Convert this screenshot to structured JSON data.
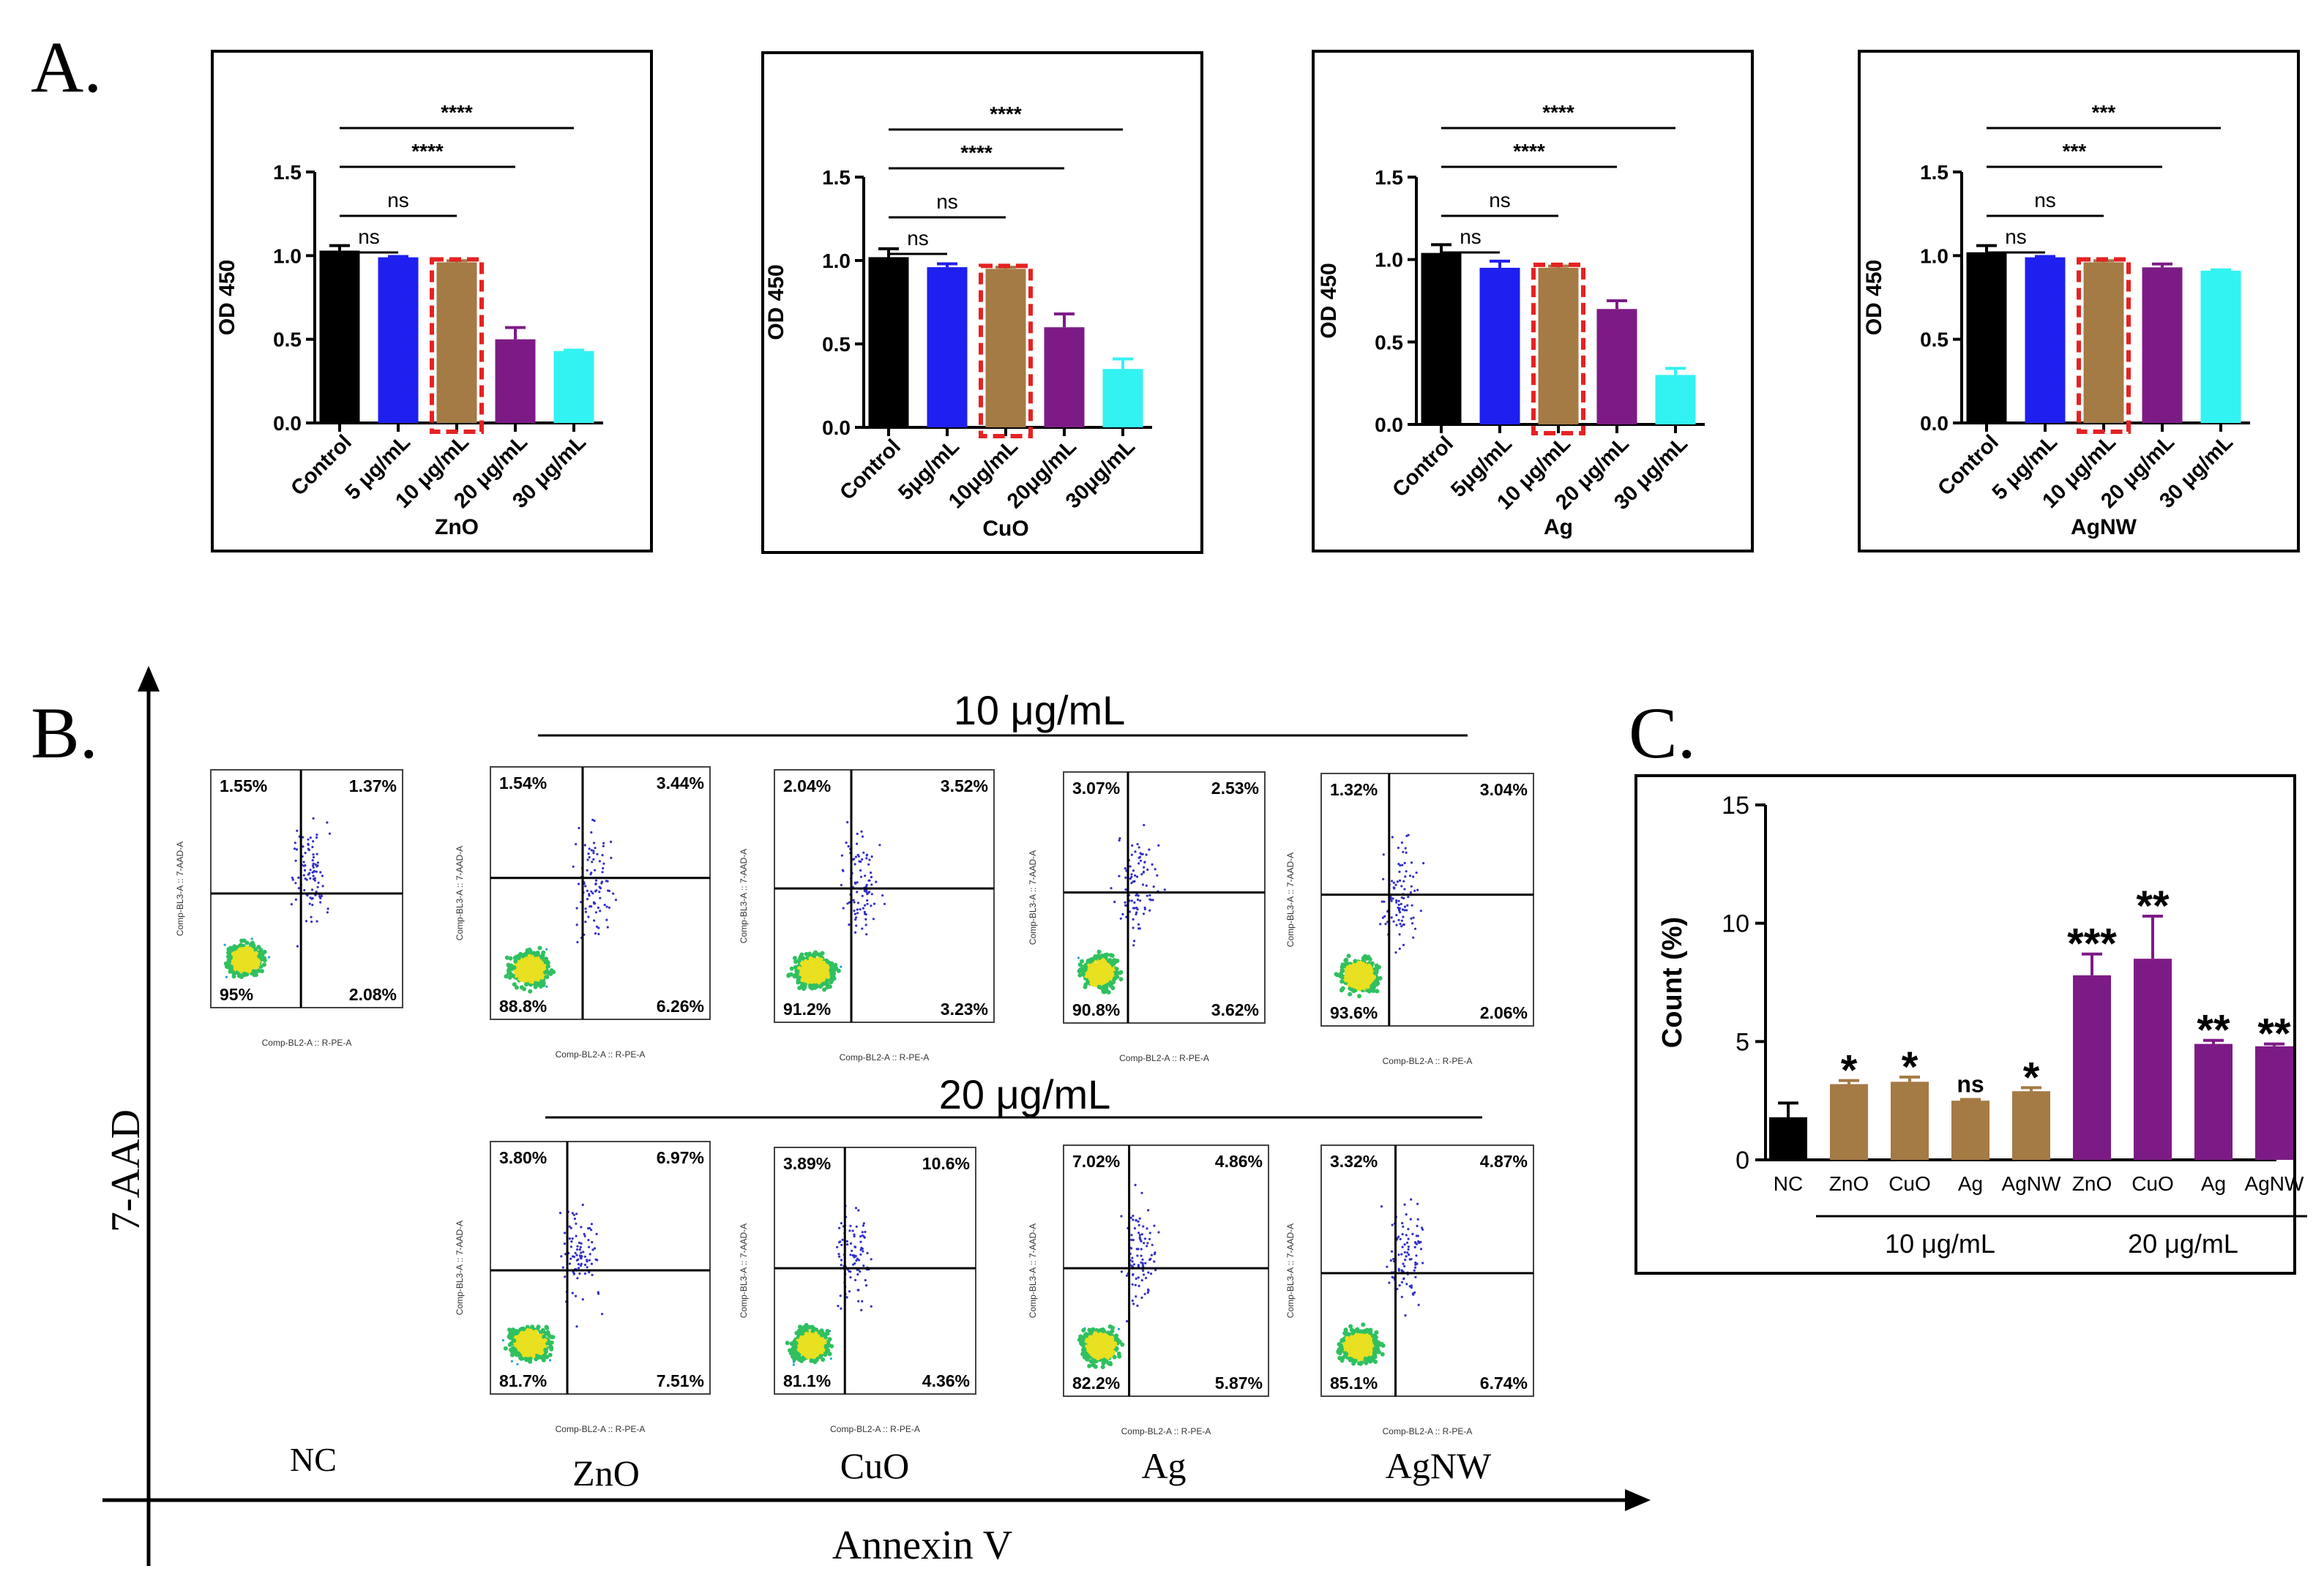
{
  "panel_labels": {
    "a": "A.",
    "b": "B.",
    "c": "C."
  },
  "chart_data": [
    {
      "type": "bar",
      "panel": "A",
      "title": "ZnO",
      "xlabel": "ZnO",
      "ylabel": "OD 450",
      "ylim": [
        0,
        1.5
      ],
      "yticks": [
        "0.0",
        "0.5",
        "1.0",
        "1.5"
      ],
      "categories": [
        "Control",
        "5 μg/mL",
        "10 μg/mL",
        "20 μg/mL",
        "30 μg/mL"
      ],
      "values": [
        1.03,
        0.99,
        0.96,
        0.5,
        0.43
      ],
      "errors": [
        0.03,
        0.005,
        0.01,
        0.07,
        0.005
      ],
      "colors": [
        "#000000",
        "#1f1ff0",
        "#a47a45",
        "#7d1b86",
        "#33f2f2"
      ],
      "highlight_index": 2,
      "significance": [
        {
          "label": "ns",
          "to": 1
        },
        {
          "label": "ns",
          "to": 2
        },
        {
          "label": "****",
          "to": 3
        },
        {
          "label": "****",
          "to": 4
        }
      ]
    },
    {
      "type": "bar",
      "panel": "A",
      "title": "CuO",
      "xlabel": "CuO",
      "ylabel": "OD 450",
      "ylim": [
        0,
        1.5
      ],
      "yticks": [
        "0.0",
        "0.5",
        "1.0",
        "1.5"
      ],
      "categories": [
        "Control",
        "5μg/mL",
        "10μg/mL",
        "20μg/mL",
        "30μg/mL"
      ],
      "values": [
        1.02,
        0.96,
        0.95,
        0.6,
        0.35
      ],
      "errors": [
        0.05,
        0.02,
        0.01,
        0.08,
        0.06
      ],
      "colors": [
        "#000000",
        "#1f1ff0",
        "#a47a45",
        "#7d1b86",
        "#33f2f2"
      ],
      "highlight_index": 2,
      "significance": [
        {
          "label": "ns",
          "to": 1
        },
        {
          "label": "ns",
          "to": 2
        },
        {
          "label": "****",
          "to": 3
        },
        {
          "label": "****",
          "to": 4
        }
      ]
    },
    {
      "type": "bar",
      "panel": "A",
      "title": "Ag",
      "xlabel": "Ag",
      "ylabel": "OD 450",
      "ylim": [
        0,
        1.5
      ],
      "yticks": [
        "0.0",
        "0.5",
        "1.0",
        "1.5"
      ],
      "categories": [
        "Control",
        "5μg/mL",
        "10 μg/mL",
        "20 μg/mL",
        "30 μg/mL"
      ],
      "values": [
        1.04,
        0.95,
        0.95,
        0.7,
        0.3
      ],
      "errors": [
        0.05,
        0.04,
        0.01,
        0.05,
        0.04
      ],
      "colors": [
        "#000000",
        "#1f1ff0",
        "#a47a45",
        "#7d1b86",
        "#33f2f2"
      ],
      "highlight_index": 2,
      "significance": [
        {
          "label": "ns",
          "to": 1
        },
        {
          "label": "ns",
          "to": 2
        },
        {
          "label": "****",
          "to": 3
        },
        {
          "label": "****",
          "to": 4
        }
      ]
    },
    {
      "type": "bar",
      "panel": "A",
      "title": "AgNW",
      "xlabel": "AgNW",
      "ylabel": "OD 450",
      "ylim": [
        0,
        1.5
      ],
      "yticks": [
        "0.0",
        "0.5",
        "1.0",
        "1.5"
      ],
      "categories": [
        "Control",
        "5 μg/mL",
        "10 μg/mL",
        "20 μg/mL",
        "30 μg/mL"
      ],
      "values": [
        1.02,
        0.99,
        0.96,
        0.93,
        0.91
      ],
      "errors": [
        0.04,
        0.005,
        0.01,
        0.02,
        0.005
      ],
      "colors": [
        "#000000",
        "#1f1ff0",
        "#a47a45",
        "#7d1b86",
        "#33f2f2"
      ],
      "highlight_index": 2,
      "significance": [
        {
          "label": "ns",
          "to": 1
        },
        {
          "label": "ns",
          "to": 2
        },
        {
          "label": "***",
          "to": 3
        },
        {
          "label": "***",
          "to": 4
        }
      ]
    },
    {
      "type": "bar",
      "panel": "C",
      "ylabel": "Count (%)",
      "ylim": [
        0,
        15
      ],
      "yticks": [
        "0",
        "5",
        "10",
        "15"
      ],
      "categories": [
        "NC",
        "ZnO",
        "CuO",
        "Ag",
        "AgNW",
        "ZnO",
        "CuO",
        "Ag",
        "AgNW"
      ],
      "values": [
        1.8,
        3.2,
        3.3,
        2.5,
        2.9,
        7.8,
        8.5,
        4.9,
        4.8
      ],
      "errors": [
        0.6,
        0.15,
        0.2,
        0.05,
        0.15,
        0.9,
        1.8,
        0.15,
        0.1
      ],
      "colors": [
        "#000000",
        "#a47a45",
        "#a47a45",
        "#a47a45",
        "#a47a45",
        "#7d1b86",
        "#7d1b86",
        "#7d1b86",
        "#7d1b86"
      ],
      "annotations": [
        "",
        "*",
        "*",
        "ns",
        "*",
        "***",
        "**",
        "**",
        "**"
      ],
      "groups": [
        {
          "label": "10 μg/mL",
          "from": 1,
          "to": 4
        },
        {
          "label": "20 μg/mL",
          "from": 5,
          "to": 8
        }
      ]
    }
  ],
  "flow": {
    "y_axis_label": "7-AAD",
    "x_axis_label": "Annexin V",
    "row_labels": [
      "10 μg/mL",
      "20 μg/mL"
    ],
    "column_labels": [
      "NC",
      "ZnO",
      "CuO",
      "Ag",
      "AgNW"
    ],
    "axis_y_small": "Comp-BL3-A :: 7-AAD-A",
    "axis_x_small": "Comp-BL2-A :: R-PE-A",
    "plots": [
      {
        "id": "nc",
        "quadrants": [
          "1.55%",
          "1.37%",
          "95%",
          "2.08%"
        ]
      },
      {
        "id": "zno-10",
        "quadrants": [
          "1.54%",
          "3.44%",
          "88.8%",
          "6.26%"
        ]
      },
      {
        "id": "cuo-10",
        "quadrants": [
          "2.04%",
          "3.52%",
          "91.2%",
          "3.23%"
        ]
      },
      {
        "id": "ag-10",
        "quadrants": [
          "3.07%",
          "2.53%",
          "90.8%",
          "3.62%"
        ]
      },
      {
        "id": "agnw-10",
        "quadrants": [
          "1.32%",
          "3.04%",
          "93.6%",
          "2.06%"
        ]
      },
      {
        "id": "zno-20",
        "quadrants": [
          "3.80%",
          "6.97%",
          "81.7%",
          "7.51%"
        ]
      },
      {
        "id": "cuo-20",
        "quadrants": [
          "3.89%",
          "10.6%",
          "81.1%",
          "4.36%"
        ]
      },
      {
        "id": "ag-20",
        "quadrants": [
          "7.02%",
          "4.86%",
          "82.2%",
          "5.87%"
        ]
      },
      {
        "id": "agnw-20",
        "quadrants": [
          "3.32%",
          "4.87%",
          "85.1%",
          "6.74%"
        ]
      }
    ]
  }
}
